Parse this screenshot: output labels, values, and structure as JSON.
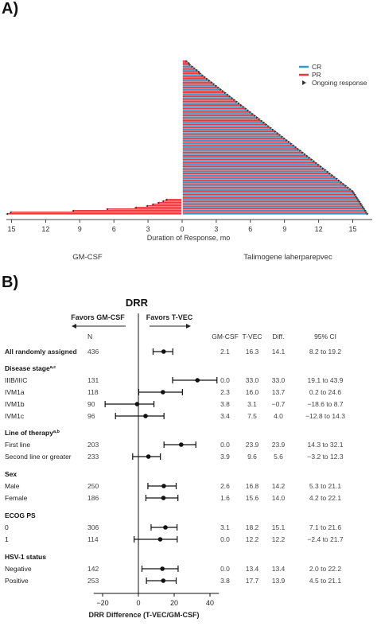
{
  "panel_a": {
    "label": "A)",
    "chart_data": {
      "type": "bar",
      "orientation": "horizontal",
      "xlabel": "Duration of Response, mo",
      "xticks_left": [
        15,
        12,
        9,
        6,
        3,
        0
      ],
      "xticks_right": [
        3,
        6,
        9,
        12,
        15
      ],
      "xlim": [
        -15.5,
        16.5
      ],
      "group_left_label": "GM-CSF",
      "group_right_label": "Talimogene laherparepvec",
      "legend": {
        "placement": "top-right",
        "entries": [
          {
            "name": "CR",
            "color": "#3399cc"
          },
          {
            "name": "PR",
            "color": "#e8383d"
          },
          {
            "name": "Ongoing response",
            "marker": "arrowhead"
          }
        ]
      },
      "tvec_bars": [
        {
          "v": 0.3,
          "t": "PR"
        },
        {
          "v": 0.5,
          "t": "PR"
        },
        {
          "v": 0.6,
          "t": "PR"
        },
        {
          "v": 0.8,
          "t": "CR"
        },
        {
          "v": 1.0,
          "t": "PR"
        },
        {
          "v": 1.2,
          "t": "CR"
        },
        {
          "v": 1.4,
          "t": "PR"
        },
        {
          "v": 1.5,
          "t": "PR"
        },
        {
          "v": 1.7,
          "t": "CR"
        },
        {
          "v": 1.9,
          "t": "PR"
        },
        {
          "v": 2.1,
          "t": "PR"
        },
        {
          "v": 2.3,
          "t": "CR"
        },
        {
          "v": 2.5,
          "t": "PR"
        },
        {
          "v": 2.7,
          "t": "PR"
        },
        {
          "v": 2.9,
          "t": "CR"
        },
        {
          "v": 3.1,
          "t": "PR"
        },
        {
          "v": 3.3,
          "t": "CR"
        },
        {
          "v": 3.5,
          "t": "PR"
        },
        {
          "v": 3.7,
          "t": "PR"
        },
        {
          "v": 3.9,
          "t": "CR"
        },
        {
          "v": 4.1,
          "t": "PR"
        },
        {
          "v": 4.3,
          "t": "CR"
        },
        {
          "v": 4.5,
          "t": "PR"
        },
        {
          "v": 4.7,
          "t": "PR"
        },
        {
          "v": 4.9,
          "t": "CR"
        },
        {
          "v": 5.1,
          "t": "PR"
        },
        {
          "v": 5.3,
          "t": "CR"
        },
        {
          "v": 5.5,
          "t": "PR"
        },
        {
          "v": 5.7,
          "t": "CR"
        },
        {
          "v": 5.9,
          "t": "PR"
        },
        {
          "v": 6.1,
          "t": "CR"
        },
        {
          "v": 6.3,
          "t": "PR"
        },
        {
          "v": 6.5,
          "t": "CR"
        },
        {
          "v": 6.7,
          "t": "PR"
        },
        {
          "v": 6.9,
          "t": "PR"
        },
        {
          "v": 7.1,
          "t": "CR"
        },
        {
          "v": 7.3,
          "t": "PR"
        },
        {
          "v": 7.5,
          "t": "CR"
        },
        {
          "v": 7.7,
          "t": "PR"
        },
        {
          "v": 7.9,
          "t": "CR"
        },
        {
          "v": 8.1,
          "t": "PR"
        },
        {
          "v": 8.3,
          "t": "CR"
        },
        {
          "v": 8.5,
          "t": "PR"
        },
        {
          "v": 8.7,
          "t": "CR"
        },
        {
          "v": 8.9,
          "t": "PR"
        },
        {
          "v": 9.1,
          "t": "CR"
        },
        {
          "v": 9.3,
          "t": "PR"
        },
        {
          "v": 9.5,
          "t": "CR"
        },
        {
          "v": 9.7,
          "t": "PR"
        },
        {
          "v": 9.9,
          "t": "CR"
        },
        {
          "v": 10.1,
          "t": "PR"
        },
        {
          "v": 10.3,
          "t": "CR"
        },
        {
          "v": 10.5,
          "t": "PR"
        },
        {
          "v": 10.7,
          "t": "CR"
        },
        {
          "v": 10.9,
          "t": "PR"
        },
        {
          "v": 11.1,
          "t": "CR"
        },
        {
          "v": 11.3,
          "t": "PR"
        },
        {
          "v": 11.5,
          "t": "CR"
        },
        {
          "v": 11.7,
          "t": "PR"
        },
        {
          "v": 11.9,
          "t": "CR"
        },
        {
          "v": 12.1,
          "t": "PR"
        },
        {
          "v": 12.3,
          "t": "CR"
        },
        {
          "v": 12.5,
          "t": "PR"
        },
        {
          "v": 12.7,
          "t": "CR"
        },
        {
          "v": 12.9,
          "t": "PR"
        },
        {
          "v": 13.1,
          "t": "CR"
        },
        {
          "v": 13.3,
          "t": "PR"
        },
        {
          "v": 13.5,
          "t": "CR"
        },
        {
          "v": 13.7,
          "t": "PR"
        },
        {
          "v": 13.9,
          "t": "CR"
        },
        {
          "v": 14.1,
          "t": "PR"
        },
        {
          "v": 14.3,
          "t": "CR"
        },
        {
          "v": 14.5,
          "t": "PR"
        },
        {
          "v": 14.7,
          "t": "CR"
        },
        {
          "v": 14.9,
          "t": "PR"
        },
        {
          "v": 15.0,
          "t": "CR"
        },
        {
          "v": 15.1,
          "t": "PR"
        },
        {
          "v": 15.2,
          "t": "CR"
        },
        {
          "v": 15.3,
          "t": "PR"
        },
        {
          "v": 15.4,
          "t": "CR"
        },
        {
          "v": 15.5,
          "t": "PR"
        },
        {
          "v": 15.6,
          "t": "CR"
        },
        {
          "v": 15.7,
          "t": "PR"
        },
        {
          "v": 15.8,
          "t": "CR"
        },
        {
          "v": 15.9,
          "t": "PR"
        },
        {
          "v": 16.0,
          "t": "CR"
        },
        {
          "v": 16.1,
          "t": "PR"
        },
        {
          "v": 16.2,
          "t": "CR"
        }
      ],
      "gmcsf_bars": [
        {
          "v": 1.3,
          "t": "PR"
        },
        {
          "v": 1.6,
          "t": "PR"
        },
        {
          "v": 2.0,
          "t": "PR"
        },
        {
          "v": 2.5,
          "t": "PR"
        },
        {
          "v": 3.0,
          "t": "PR"
        },
        {
          "v": 4.0,
          "t": "PR"
        },
        {
          "v": 6.5,
          "t": "PR"
        },
        {
          "v": 9.5,
          "t": "PR"
        },
        {
          "v": 15.0,
          "t": "PR"
        },
        {
          "v": 15.3,
          "t": "PR"
        }
      ]
    }
  },
  "panel_b": {
    "label": "B)",
    "chart_data": {
      "type": "forest",
      "title": "DRR",
      "favors_left": "Favors GM-CSF",
      "favors_right": "Favors T-VEC",
      "col_n": "N",
      "col_gm": "GM-CSF",
      "col_tvec": "T-VEC",
      "col_diff": "Diff.",
      "col_ci": "95% CI",
      "xlabel": "DRR Difference (T-VEC/GM-CSF)",
      "xlim": [
        -25,
        45
      ],
      "xticks": [
        -20,
        0,
        20,
        40
      ],
      "rows": [
        {
          "kind": "row",
          "bold": true,
          "label": "All randomly assigned",
          "n": "436",
          "gm": "2.1",
          "tvec": "16.3",
          "diff": "14.1",
          "ci": "8.2 to 19.2",
          "est": 14.1,
          "lo": 8.2,
          "hi": 19.2
        },
        {
          "kind": "header",
          "label": "Disease stage",
          "sup": "a,c"
        },
        {
          "kind": "row",
          "label": "IIIB/IIIC",
          "n": "131",
          "gm": "0.0",
          "tvec": "33.0",
          "diff": "33.0",
          "ci": "19.1 to 43.9",
          "est": 33.0,
          "lo": 19.1,
          "hi": 43.9
        },
        {
          "kind": "row",
          "label": "IVM1a",
          "n": "118",
          "gm": "2.3",
          "tvec": "16.0",
          "diff": "13.7",
          "ci": "0.2 to 24.6",
          "est": 13.7,
          "lo": 0.2,
          "hi": 24.6
        },
        {
          "kind": "row",
          "label": "IVM1b",
          "n": "90",
          "gm": "3.8",
          "tvec": "3.1",
          "diff": "−0.7",
          "ci": "−18.6 to 8.7",
          "est": -0.7,
          "lo": -18.6,
          "hi": 8.7
        },
        {
          "kind": "row",
          "label": "IVM1c",
          "n": "96",
          "gm": "3.4",
          "tvec": "7.5",
          "diff": "4.0",
          "ci": "−12.8 to 14.3",
          "est": 4.0,
          "lo": -12.8,
          "hi": 14.3
        },
        {
          "kind": "header",
          "label": "Line of therapy",
          "sup": "a,b"
        },
        {
          "kind": "row",
          "label": "First line",
          "n": "203",
          "gm": "0.0",
          "tvec": "23.9",
          "diff": "23.9",
          "ci": "14.3 to 32.1",
          "est": 23.9,
          "lo": 14.3,
          "hi": 32.1
        },
        {
          "kind": "row",
          "label": "Second line or greater",
          "n": "233",
          "gm": "3.9",
          "tvec": "9.6",
          "diff": "5.6",
          "ci": "−3.2 to 12.3",
          "est": 5.6,
          "lo": -3.2,
          "hi": 12.3
        },
        {
          "kind": "header",
          "label": "Sex"
        },
        {
          "kind": "row",
          "label": "Male",
          "n": "250",
          "gm": "2.6",
          "tvec": "16.8",
          "diff": "14.2",
          "ci": "5.3 to 21.1",
          "est": 14.2,
          "lo": 5.3,
          "hi": 21.1
        },
        {
          "kind": "row",
          "label": "Female",
          "n": "186",
          "gm": "1.6",
          "tvec": "15.6",
          "diff": "14.0",
          "ci": "4.2 to 22.1",
          "est": 14.0,
          "lo": 4.2,
          "hi": 22.1
        },
        {
          "kind": "header",
          "label": "ECOG PS"
        },
        {
          "kind": "row",
          "label": "0",
          "n": "306",
          "gm": "3.1",
          "tvec": "18.2",
          "diff": "15.1",
          "ci": "7.1 to 21.6",
          "est": 15.1,
          "lo": 7.1,
          "hi": 21.6
        },
        {
          "kind": "row",
          "label": "1",
          "n": "114",
          "gm": "0.0",
          "tvec": "12.2",
          "diff": "12.2",
          "ci": "−2.4 to 21.7",
          "est": 12.2,
          "lo": -2.4,
          "hi": 21.7
        },
        {
          "kind": "header",
          "label": "HSV-1 status"
        },
        {
          "kind": "row",
          "label": "Negative",
          "n": "142",
          "gm": "0.0",
          "tvec": "13.4",
          "diff": "13.4",
          "ci": "2.0 to 22.2",
          "est": 13.4,
          "lo": 2.0,
          "hi": 22.2
        },
        {
          "kind": "row",
          "label": "Positive",
          "n": "253",
          "gm": "3.8",
          "tvec": "17.7",
          "diff": "13.9",
          "ci": "4.5 to 21.1",
          "est": 13.9,
          "lo": 4.5,
          "hi": 21.1
        }
      ]
    }
  }
}
